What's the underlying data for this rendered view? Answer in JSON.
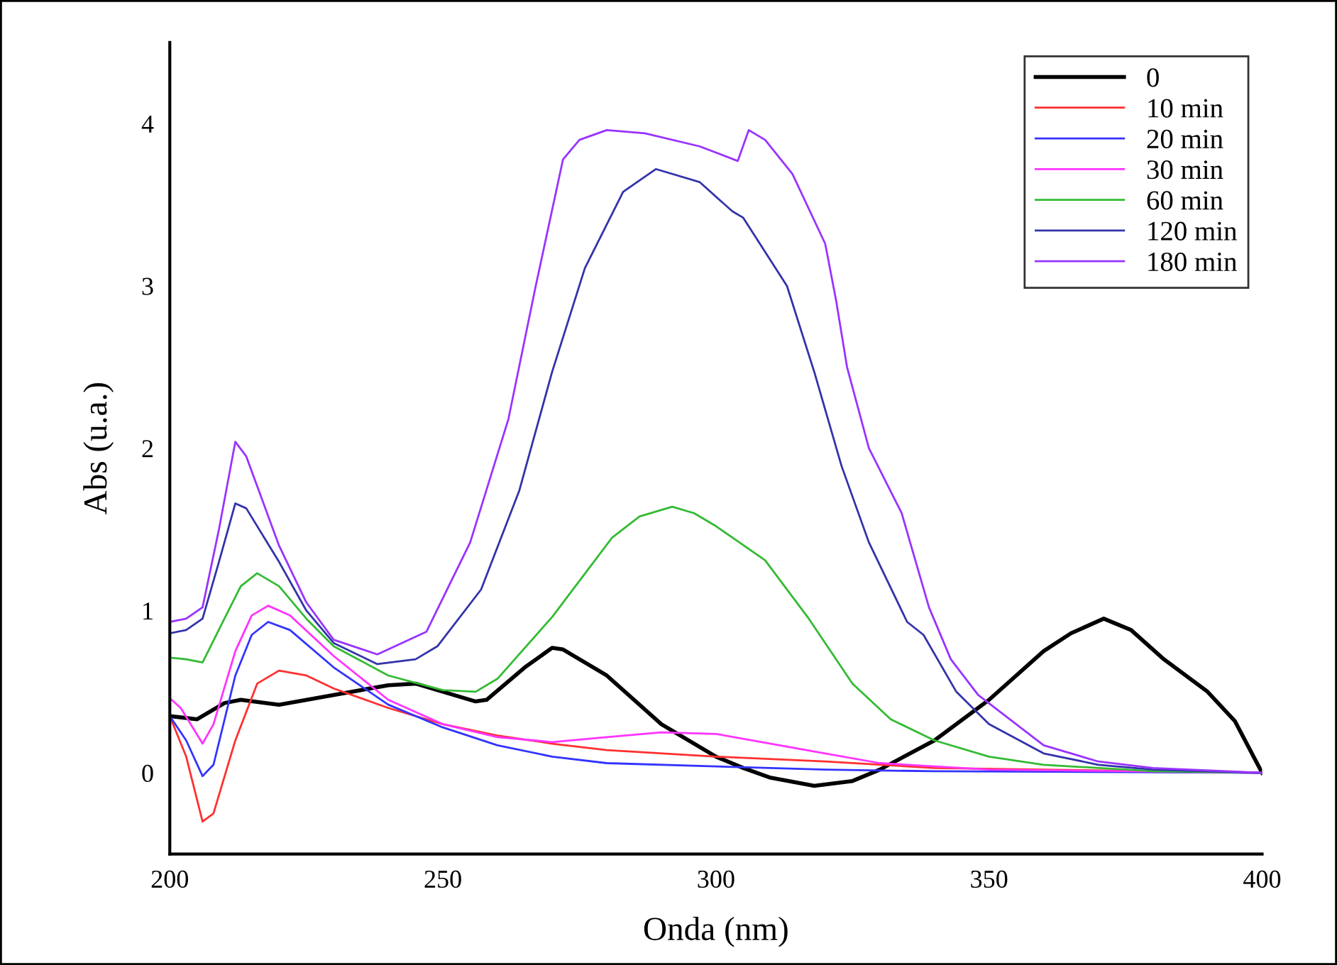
{
  "chart_data": {
    "type": "line",
    "xlabel": "Onda (nm)",
    "ylabel": "Abs (u.a.)",
    "xlim": [
      200,
      400
    ],
    "ylim": [
      -0.5,
      4.5
    ],
    "xticks": [
      200,
      250,
      300,
      350,
      400
    ],
    "yticks": [
      0,
      1,
      2,
      3,
      4
    ],
    "grid": false,
    "legend": "top right",
    "marker": "none",
    "line_style": "solid",
    "series": [
      {
        "name": "0",
        "color": "#000000",
        "x": [
          200,
          205,
          210,
          213,
          220,
          230,
          240,
          245,
          250,
          256,
          258,
          265,
          270,
          272,
          280,
          290,
          300,
          305,
          310,
          318,
          325,
          330,
          340,
          350,
          360,
          365,
          371,
          376,
          382,
          390,
          395,
          400
        ],
        "values": [
          0.35,
          0.33,
          0.43,
          0.45,
          0.42,
          0.48,
          0.54,
          0.55,
          0.5,
          0.44,
          0.45,
          0.65,
          0.77,
          0.76,
          0.6,
          0.3,
          0.1,
          0.03,
          -0.03,
          -0.08,
          -0.05,
          0.02,
          0.2,
          0.45,
          0.75,
          0.86,
          0.95,
          0.88,
          0.7,
          0.5,
          0.32,
          0.0
        ]
      },
      {
        "name": "10 min",
        "color": "#ff3030",
        "x": [
          200,
          203,
          206,
          208,
          212,
          216,
          220,
          225,
          230,
          240,
          250,
          260,
          270,
          280,
          300,
          320,
          340,
          360,
          400
        ],
        "values": [
          0.35,
          0.1,
          -0.3,
          -0.25,
          0.2,
          0.55,
          0.63,
          0.6,
          0.52,
          0.4,
          0.3,
          0.23,
          0.18,
          0.14,
          0.1,
          0.07,
          0.03,
          0.02,
          0.0
        ]
      },
      {
        "name": "20 min",
        "color": "#3333ff",
        "x": [
          200,
          203,
          206,
          208,
          212,
          215,
          218,
          222,
          230,
          240,
          250,
          260,
          270,
          280,
          300,
          320,
          340,
          400
        ],
        "values": [
          0.35,
          0.2,
          -0.02,
          0.05,
          0.6,
          0.85,
          0.93,
          0.88,
          0.65,
          0.42,
          0.28,
          0.17,
          0.1,
          0.06,
          0.04,
          0.02,
          0.01,
          0.0
        ]
      },
      {
        "name": "30 min",
        "color": "#ff33ff",
        "x": [
          200,
          202,
          206,
          208,
          212,
          215,
          218,
          222,
          230,
          240,
          250,
          260,
          270,
          280,
          290,
          300,
          310,
          320,
          330,
          350,
          400
        ],
        "values": [
          0.46,
          0.4,
          0.18,
          0.3,
          0.75,
          0.97,
          1.03,
          0.97,
          0.72,
          0.45,
          0.3,
          0.22,
          0.19,
          0.22,
          0.25,
          0.24,
          0.18,
          0.12,
          0.06,
          0.02,
          0.0
        ]
      },
      {
        "name": "60 min",
        "color": "#33bb33",
        "x": [
          200,
          203,
          206,
          210,
          213,
          216,
          220,
          225,
          230,
          240,
          250,
          256,
          260,
          270,
          281,
          286,
          292,
          296,
          300,
          309,
          317,
          325,
          332,
          340,
          350,
          360,
          380,
          400
        ],
        "values": [
          0.71,
          0.7,
          0.68,
          0.95,
          1.15,
          1.23,
          1.15,
          0.95,
          0.78,
          0.6,
          0.51,
          0.5,
          0.58,
          0.96,
          1.45,
          1.58,
          1.64,
          1.6,
          1.52,
          1.31,
          0.95,
          0.55,
          0.33,
          0.2,
          0.1,
          0.05,
          0.01,
          0.0
        ]
      },
      {
        "name": "120 min",
        "color": "#3333aa",
        "x": [
          200,
          203,
          206,
          209,
          212,
          214,
          220,
          225,
          230,
          238,
          245,
          249,
          257,
          264,
          270,
          276,
          283,
          289,
          297,
          303,
          305,
          313,
          318,
          323,
          328,
          335,
          338,
          344,
          350,
          360,
          370,
          380,
          400
        ],
        "values": [
          0.86,
          0.88,
          0.95,
          1.3,
          1.66,
          1.63,
          1.3,
          1.0,
          0.8,
          0.67,
          0.7,
          0.78,
          1.13,
          1.74,
          2.47,
          3.11,
          3.58,
          3.72,
          3.64,
          3.46,
          3.42,
          3.0,
          2.47,
          1.89,
          1.42,
          0.93,
          0.85,
          0.5,
          0.3,
          0.12,
          0.05,
          0.02,
          0.0
        ]
      },
      {
        "name": "180 min",
        "color": "#9933ff",
        "x": [
          200,
          203,
          206,
          209,
          212,
          214,
          220,
          225,
          230,
          238,
          247,
          255,
          262,
          267,
          272,
          275,
          280,
          287,
          297,
          304,
          306,
          309,
          314,
          320,
          322,
          324,
          328,
          334,
          339,
          343,
          348,
          360,
          370,
          380,
          400
        ],
        "values": [
          0.93,
          0.95,
          1.02,
          1.5,
          2.04,
          1.95,
          1.4,
          1.05,
          0.82,
          0.73,
          0.87,
          1.42,
          2.18,
          3.0,
          3.78,
          3.9,
          3.96,
          3.94,
          3.86,
          3.77,
          3.96,
          3.9,
          3.69,
          3.26,
          2.91,
          2.5,
          2.0,
          1.6,
          1.02,
          0.7,
          0.48,
          0.17,
          0.07,
          0.03,
          0.0
        ]
      }
    ]
  }
}
